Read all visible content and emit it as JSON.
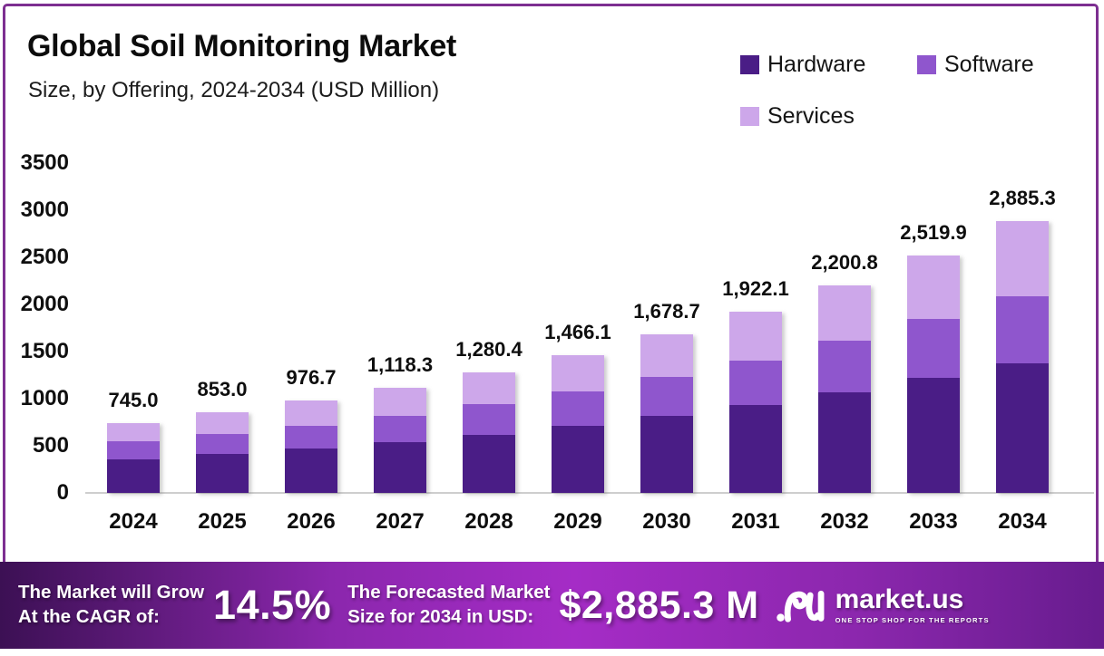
{
  "header": {
    "title": "Global Soil Monitoring Market",
    "subtitle": "Size, by Offering, 2024-2034 (USD Million)"
  },
  "legend": {
    "items": [
      {
        "label": "Hardware",
        "color": "#4a1d86"
      },
      {
        "label": "Software",
        "color": "#8f56cd"
      },
      {
        "label": "Services",
        "color": "#cda7ea"
      }
    ]
  },
  "chart_data": {
    "type": "bar",
    "stacked": true,
    "title": "Global Soil Monitoring Market Size, by Offering, 2024-2034 (USD Million)",
    "xlabel": "",
    "ylabel": "",
    "grid": false,
    "legend_position": "top-right",
    "ylim": [
      0,
      3500
    ],
    "yticks": [
      0,
      500,
      1000,
      1500,
      2000,
      2500,
      3000,
      3500
    ],
    "categories": [
      "2024",
      "2025",
      "2026",
      "2027",
      "2028",
      "2029",
      "2030",
      "2031",
      "2032",
      "2033",
      "2034"
    ],
    "series": [
      {
        "name": "Hardware",
        "color": "#4a1d86",
        "values": [
          360,
          413,
          473,
          541,
          620,
          710,
          813,
          931,
          1066,
          1221,
          1378
        ]
      },
      {
        "name": "Software",
        "color": "#8f56cd",
        "values": [
          187,
          213,
          243,
          278,
          318,
          364,
          417,
          477,
          546,
          625,
          711
        ]
      },
      {
        "name": "Services",
        "color": "#cda7ea",
        "values": [
          198,
          227,
          260.7,
          299.3,
          342.4,
          392.1,
          448.7,
          514.1,
          588.8,
          673.9,
          796.3
        ]
      }
    ],
    "totals": [
      745.0,
      853.0,
      976.7,
      1118.3,
      1280.4,
      1466.1,
      1678.7,
      1922.1,
      2200.8,
      2519.9,
      2885.3
    ],
    "total_labels": [
      "745.0",
      "853.0",
      "976.7",
      "1,118.3",
      "1,280.4",
      "1,466.1",
      "1,678.7",
      "1,922.1",
      "2,200.8",
      "2,519.9",
      "2,885.3"
    ],
    "note": "Series values estimated from stacked segment heights; totals are labeled on chart"
  },
  "footer": {
    "cagr_label_line1": "The Market will Grow",
    "cagr_label_line2": "At the CAGR of:",
    "cagr_value": "14.5%",
    "forecast_label_line1": "The Forecasted Market",
    "forecast_label_line2": "Size for 2034 in USD:",
    "forecast_value": "$2,885.3 M",
    "brand": "market.us",
    "tagline": "ONE STOP SHOP FOR THE REPORTS"
  },
  "colors": {
    "border": "#7d2f91",
    "baseline": "#cecece",
    "text": "#101010",
    "footer_text": "#ffffff",
    "footer_gradient": [
      "#3c1054",
      "#8b27ad",
      "#a52cc6",
      "#8b27ad",
      "#671c8e"
    ]
  }
}
